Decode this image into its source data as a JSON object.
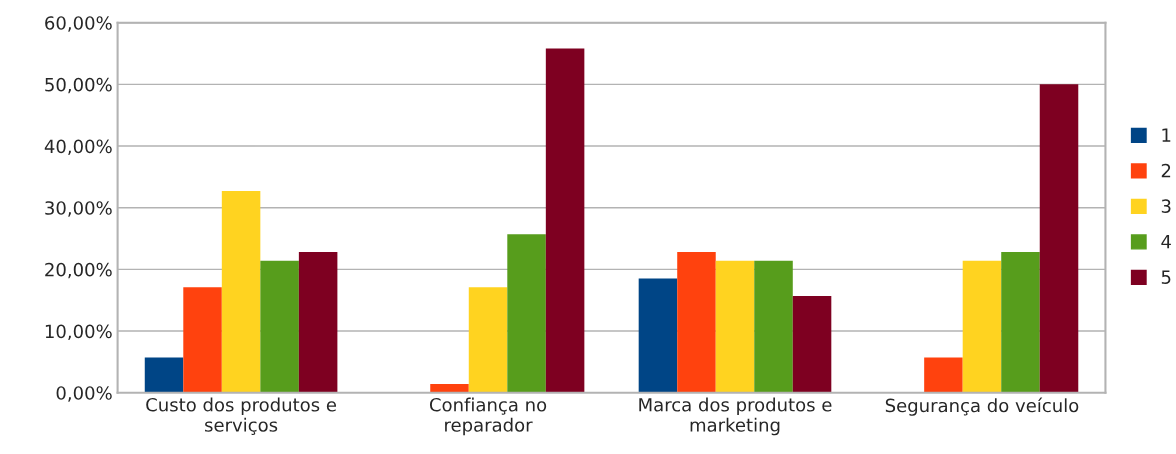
{
  "chart_data": {
    "type": "bar",
    "categories": [
      "Custo dos produtos e\nserviços",
      "Confiança no\nreparador",
      "Marca dos produtos e\nmarketing",
      "Segurança do veículo"
    ],
    "series": [
      {
        "name": "1",
        "color": "#004586",
        "values": [
          5.7,
          null,
          18.5,
          null
        ]
      },
      {
        "name": "2",
        "color": "#ff420e",
        "values": [
          17.1,
          1.4,
          22.8,
          5.7
        ]
      },
      {
        "name": "3",
        "color": "#ffd320",
        "values": [
          32.7,
          17.1,
          21.4,
          21.4
        ]
      },
      {
        "name": "4",
        "color": "#579d1c",
        "values": [
          21.4,
          25.7,
          21.4,
          22.8
        ]
      },
      {
        "name": "5",
        "color": "#7e0021",
        "values": [
          22.8,
          55.8,
          15.7,
          50.0
        ]
      }
    ],
    "ylim": [
      0,
      60
    ],
    "yticks": [
      {
        "value": 0,
        "label": "0,00%"
      },
      {
        "value": 10,
        "label": "10,00%"
      },
      {
        "value": 20,
        "label": "20,00%"
      },
      {
        "value": 30,
        "label": "30,00%"
      },
      {
        "value": 40,
        "label": "40,00%"
      },
      {
        "value": 50,
        "label": "50,00%"
      },
      {
        "value": 60,
        "label": "60,00%"
      }
    ],
    "grid": "y",
    "legend": "right"
  }
}
